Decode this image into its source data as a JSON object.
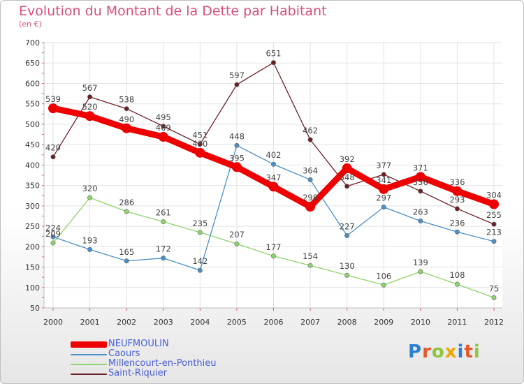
{
  "header": {
    "title": "Evolution du Montant de la Dette par Habitant",
    "subtitle": "(en €)"
  },
  "brand": {
    "text": "Proxiti",
    "letter_colors": [
      "#2a7fd4",
      "#e8562a",
      "#8dc63f",
      "#f0a500",
      "#2a7fd4",
      "#e8562a",
      "#8dc63f"
    ]
  },
  "chart_data": {
    "type": "line",
    "title": "Evolution du Montant de la Dette par Habitant",
    "ylabel": "(en €)",
    "xlabel": "",
    "x": [
      "2000",
      "2001",
      "2002",
      "2003",
      "2004",
      "2005",
      "2006",
      "2007",
      "2008",
      "2009",
      "2010",
      "2011",
      "2012"
    ],
    "ylim": [
      50,
      700
    ],
    "yticks": [
      50,
      100,
      150,
      200,
      250,
      300,
      350,
      400,
      450,
      500,
      550,
      600,
      650,
      700
    ],
    "grid": true,
    "legend_position": "bottom-left",
    "series": [
      {
        "name": "NEUFMOULIN",
        "color": "#ee0000",
        "values": [
          539,
          520,
          490,
          469,
          430,
          395,
          347,
          298,
          392,
          341,
          371,
          336,
          304
        ]
      },
      {
        "name": "Caours",
        "color": "#4a90c8",
        "values": [
          224,
          193,
          165,
          172,
          142,
          448,
          402,
          364,
          227,
          297,
          263,
          236,
          213
        ]
      },
      {
        "name": "Millencourt-en-Ponthieu",
        "color": "#8dd46a",
        "values": [
          209,
          320,
          286,
          261,
          235,
          207,
          177,
          154,
          130,
          106,
          139,
          108,
          75
        ]
      },
      {
        "name": "Saint-Riquier",
        "color": "#6b1f24",
        "values": [
          420,
          567,
          538,
          495,
          451,
          597,
          651,
          462,
          348,
          377,
          336,
          293,
          255
        ]
      }
    ],
    "data_labels": [
      [
        "539",
        "520",
        "490",
        "469",
        "430",
        "395",
        "347",
        "298",
        "392",
        "341",
        "371",
        "336",
        "304"
      ],
      [
        "224",
        "193",
        "165",
        "172",
        "142",
        "448",
        "402",
        "364",
        "227",
        "297",
        "263",
        "236",
        "213"
      ],
      [
        "209",
        "320",
        "286",
        "261",
        "235",
        "207",
        "177",
        "154",
        "130",
        "106",
        "139",
        "108",
        "75"
      ],
      [
        "420",
        "567",
        "538",
        "495",
        "451",
        "597",
        "651",
        "462",
        "348",
        "377",
        "336",
        "293",
        "255"
      ]
    ]
  }
}
